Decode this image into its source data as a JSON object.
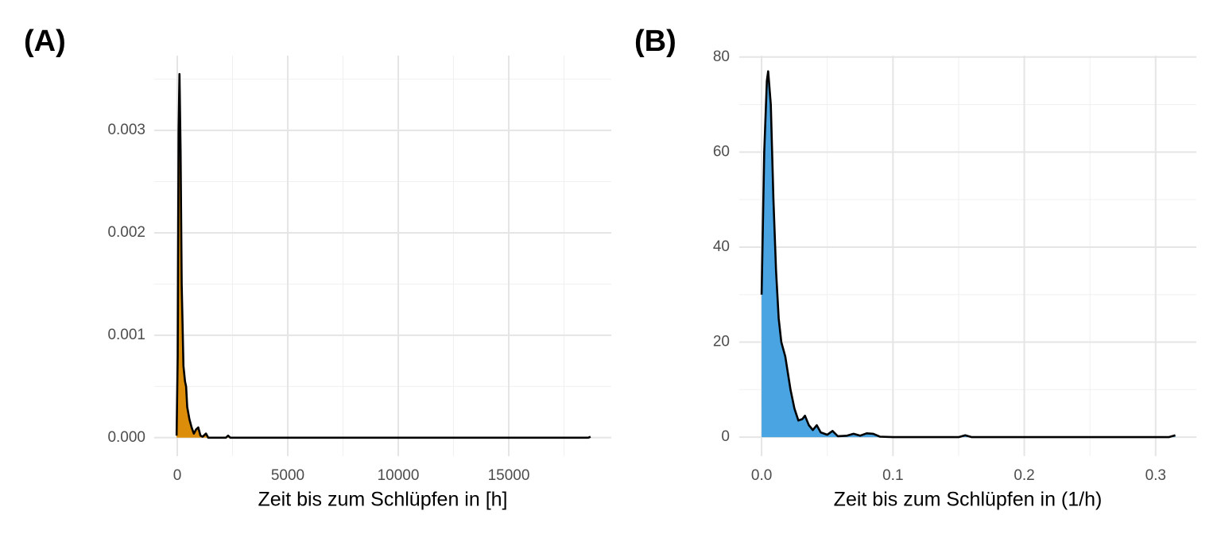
{
  "chart_data": [
    {
      "type": "density",
      "tag": "(A)",
      "x_label": "Zeit bis zum Schlüpfen in [h]",
      "color": "#DC8E0B",
      "x": [
        -30,
        20,
        60,
        100,
        150,
        200,
        280,
        350,
        400,
        450,
        550,
        650,
        750,
        850,
        950,
        1050,
        1150,
        1300,
        1400,
        2200,
        2300,
        2400,
        18600,
        18700
      ],
      "values": [
        2e-05,
        0.0008,
        0.003,
        0.00355,
        0.0028,
        0.0015,
        0.0007,
        0.00055,
        0.0005,
        0.0003,
        0.00018,
        0.0001,
        4e-05,
        8e-05,
        0.0001,
        2e-05,
        1e-05,
        4e-05,
        0,
        0,
        2e-05,
        0,
        0,
        1e-05
      ],
      "xlim": [
        -1043,
        19640
      ],
      "ylim": [
        -0.00018,
        0.00373
      ],
      "xticks": [
        0,
        5000,
        10000,
        15000
      ],
      "yticks": [
        {
          "value": 0,
          "label": "0.000"
        },
        {
          "value": 0.001,
          "label": "0.001"
        },
        {
          "value": 0.002,
          "label": "0.002"
        },
        {
          "value": 0.003,
          "label": "0.003"
        }
      ],
      "xminor": [
        2500,
        7500,
        12500,
        17500
      ],
      "yminor": [
        0.0005,
        0.0015,
        0.0025,
        0.0035
      ],
      "grid": true
    },
    {
      "type": "density",
      "tag": "(B)",
      "x_label": "Zeit bis zum Schlüpfen in (1/h)",
      "color": "#4AA4E2",
      "x": [
        0,
        0.002,
        0.004,
        0.005,
        0.007,
        0.009,
        0.011,
        0.013,
        0.015,
        0.018,
        0.022,
        0.025,
        0.028,
        0.031,
        0.033,
        0.036,
        0.039,
        0.042,
        0.045,
        0.05,
        0.054,
        0.058,
        0.065,
        0.07,
        0.075,
        0.08,
        0.085,
        0.09,
        0.1,
        0.15,
        0.155,
        0.16,
        0.31,
        0.315
      ],
      "values": [
        30,
        60,
        75,
        77,
        70,
        50,
        35,
        25,
        20,
        17,
        10,
        6,
        3.5,
        3.8,
        4.5,
        2.5,
        1.5,
        2.5,
        1,
        0.5,
        1.3,
        0.2,
        0.3,
        0.7,
        0.3,
        0.8,
        0.7,
        0.1,
        0,
        0,
        0.4,
        0,
        0,
        0.4
      ],
      "xlim": [
        -0.017,
        0.331
      ],
      "ylim": [
        -4,
        80.3
      ],
      "xticks": [
        {
          "value": 0,
          "label": "0.0"
        },
        0.1,
        0.2,
        0.3
      ],
      "yticks": [
        0,
        20,
        40,
        60,
        80
      ],
      "xminor": [
        0.05,
        0.15,
        0.25
      ],
      "yminor": [
        10,
        30,
        50,
        70
      ],
      "grid": true
    }
  ]
}
